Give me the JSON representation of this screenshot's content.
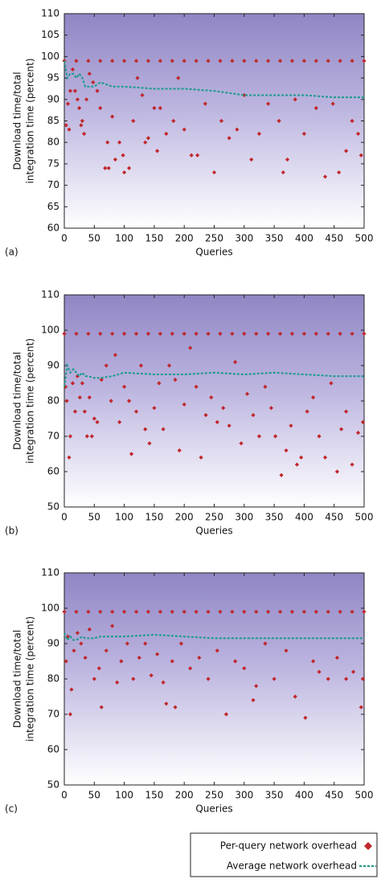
{
  "chart_data": [
    {
      "type": "scatter",
      "panel_label": "(a)",
      "xlabel": "Queries",
      "ylabel": [
        "Download time/total",
        "integration time (percent)"
      ],
      "xlim": [
        0,
        500
      ],
      "xticks": [
        0,
        50,
        100,
        150,
        200,
        250,
        300,
        350,
        400,
        450,
        500
      ],
      "ylim": [
        60,
        110
      ],
      "yticks": [
        60,
        65,
        70,
        75,
        80,
        85,
        90,
        95,
        100,
        105,
        110
      ],
      "series": [
        {
          "mode": "markers",
          "color": "#c0282d",
          "x": [
            0,
            20,
            40,
            60,
            80,
            100,
            120,
            140,
            160,
            180,
            200,
            220,
            240,
            260,
            280,
            300,
            320,
            340,
            360,
            380,
            400,
            420,
            440,
            460,
            480,
            500,
            3,
            6,
            8,
            10,
            14,
            18,
            22,
            25,
            28,
            30,
            33,
            37,
            42,
            48,
            55,
            60,
            68,
            72,
            74,
            80,
            85,
            92,
            98,
            100,
            108,
            115,
            122,
            130,
            135,
            140,
            150,
            155,
            160,
            170,
            182,
            190,
            200,
            212,
            222,
            235,
            250,
            262,
            275,
            288,
            300,
            312,
            325,
            340,
            358,
            365,
            372,
            385,
            400,
            420,
            435,
            448,
            458,
            470,
            480,
            490,
            495
          ],
          "values": [
            99,
            99,
            99,
            99,
            99,
            99,
            99,
            99,
            99,
            99,
            99,
            99,
            99,
            99,
            99,
            99,
            99,
            99,
            99,
            99,
            99,
            99,
            99,
            99,
            99,
            99,
            84,
            89,
            83,
            92,
            97,
            92,
            90,
            88,
            84,
            85,
            82,
            90,
            96,
            94,
            92,
            88,
            74,
            80,
            74,
            86,
            76,
            80,
            77,
            73,
            74,
            85,
            95,
            91,
            80,
            81,
            88,
            78,
            88,
            82,
            85,
            95,
            83,
            77,
            77,
            89,
            73,
            85,
            81,
            83,
            91,
            76,
            82,
            89,
            85,
            73,
            76,
            90,
            82,
            88,
            72,
            89,
            73,
            78,
            85,
            82,
            77
          ]
        },
        {
          "mode": "line",
          "color": "#1a9a8a",
          "x": [
            0,
            5,
            10,
            15,
            20,
            25,
            30,
            35,
            40,
            50,
            60,
            80,
            100,
            150,
            200,
            250,
            300,
            350,
            400,
            450,
            500
          ],
          "values": [
            99,
            95,
            96,
            96,
            95,
            96,
            95,
            93,
            93,
            93,
            94,
            93,
            93,
            92.5,
            92.5,
            92,
            91,
            91,
            91,
            90.5,
            90.5
          ]
        }
      ]
    },
    {
      "type": "scatter",
      "panel_label": "(b)",
      "xlabel": "Queries",
      "ylabel": [
        "Download time/total",
        "integration time (percent)"
      ],
      "xlim": [
        0,
        500
      ],
      "xticks": [
        0,
        50,
        100,
        150,
        200,
        250,
        300,
        350,
        400,
        450,
        500
      ],
      "ylim": [
        50,
        110
      ],
      "yticks": [
        50,
        60,
        70,
        80,
        90,
        100,
        110
      ],
      "series": [
        {
          "mode": "markers",
          "color": "#c0282d",
          "x": [
            0,
            20,
            40,
            60,
            80,
            100,
            120,
            140,
            160,
            180,
            200,
            220,
            240,
            260,
            280,
            300,
            320,
            340,
            360,
            380,
            400,
            420,
            440,
            460,
            480,
            500,
            2,
            4,
            8,
            10,
            14,
            18,
            22,
            26,
            30,
            34,
            38,
            42,
            46,
            50,
            55,
            62,
            70,
            78,
            85,
            92,
            100,
            108,
            112,
            120,
            128,
            135,
            142,
            150,
            158,
            165,
            175,
            185,
            192,
            200,
            210,
            220,
            228,
            236,
            245,
            255,
            265,
            275,
            285,
            295,
            305,
            315,
            325,
            335,
            345,
            352,
            362,
            370,
            378,
            388,
            395,
            405,
            415,
            425,
            435,
            445,
            455,
            462,
            470,
            480,
            490,
            498
          ],
          "values": [
            99,
            99,
            99,
            99,
            99,
            99,
            99,
            99,
            99,
            99,
            99,
            99,
            99,
            99,
            99,
            99,
            99,
            99,
            99,
            99,
            99,
            99,
            99,
            99,
            99,
            99,
            84,
            80,
            64,
            70,
            85,
            77,
            87,
            81,
            85,
            77,
            70,
            81,
            70,
            75,
            74,
            86,
            90,
            80,
            93,
            74,
            84,
            80,
            65,
            77,
            90,
            72,
            68,
            78,
            85,
            72,
            90,
            86,
            66,
            79,
            95,
            84,
            64,
            76,
            81,
            74,
            78,
            73,
            91,
            68,
            82,
            76,
            70,
            84,
            78,
            70,
            59,
            66,
            73,
            62,
            64,
            77,
            81,
            70,
            64,
            85,
            60,
            72,
            77,
            62,
            71,
            74
          ]
        },
        {
          "mode": "line",
          "color": "#1a9a8a",
          "x": [
            0,
            5,
            10,
            15,
            20,
            25,
            30,
            35,
            40,
            50,
            60,
            80,
            100,
            150,
            200,
            250,
            300,
            350,
            400,
            450,
            500
          ],
          "values": [
            84,
            90,
            88,
            89,
            88,
            87,
            88,
            87,
            87,
            86.5,
            86.5,
            87,
            88,
            87.5,
            87.5,
            88,
            87.5,
            88,
            87.5,
            87,
            87
          ]
        }
      ]
    },
    {
      "type": "scatter",
      "panel_label": "(c)",
      "xlabel": "Queries",
      "ylabel": [
        "Download time/total",
        "integration time (percent)"
      ],
      "xlim": [
        0,
        500
      ],
      "xticks": [
        0,
        50,
        100,
        150,
        200,
        250,
        300,
        350,
        400,
        450,
        500
      ],
      "ylim": [
        50,
        110
      ],
      "yticks": [
        50,
        60,
        70,
        80,
        90,
        100,
        110
      ],
      "series": [
        {
          "mode": "markers",
          "color": "#c0282d",
          "x": [
            0,
            20,
            40,
            60,
            80,
            100,
            120,
            140,
            160,
            180,
            200,
            220,
            240,
            260,
            280,
            300,
            320,
            340,
            360,
            380,
            400,
            420,
            440,
            460,
            480,
            500,
            3,
            6,
            10,
            12,
            16,
            22,
            28,
            35,
            42,
            50,
            58,
            62,
            70,
            80,
            88,
            95,
            105,
            115,
            125,
            135,
            145,
            155,
            165,
            170,
            180,
            185,
            195,
            210,
            225,
            240,
            255,
            270,
            285,
            300,
            315,
            320,
            335,
            350,
            370,
            385,
            402,
            415,
            425,
            440,
            455,
            470,
            482,
            495,
            498
          ],
          "values": [
            99,
            99,
            99,
            99,
            99,
            99,
            99,
            99,
            99,
            99,
            99,
            99,
            99,
            99,
            99,
            99,
            99,
            99,
            99,
            99,
            99,
            99,
            99,
            99,
            99,
            99,
            85,
            92,
            70,
            77,
            88,
            93,
            90,
            86,
            94,
            80,
            83,
            72,
            88,
            95,
            79,
            85,
            90,
            80,
            86,
            90,
            81,
            87,
            79,
            73,
            85,
            72,
            90,
            83,
            86,
            80,
            88,
            70,
            85,
            83,
            74,
            78,
            90,
            80,
            88,
            75,
            69,
            85,
            82,
            80,
            86,
            80,
            82,
            72,
            80
          ]
        },
        {
          "mode": "line",
          "color": "#1a9a8a",
          "x": [
            0,
            5,
            10,
            15,
            20,
            25,
            30,
            35,
            40,
            50,
            60,
            80,
            100,
            150,
            200,
            250,
            300,
            350,
            400,
            450,
            500
          ],
          "values": [
            93,
            91,
            92,
            91,
            91,
            91.5,
            92,
            91.5,
            91.5,
            91.5,
            92,
            92,
            92,
            92.5,
            92,
            91.5,
            91.5,
            91.5,
            91.5,
            91.5,
            91.5
          ]
        }
      ]
    }
  ],
  "legend": [
    {
      "label": "Per-query network overhead",
      "marker": "diamond",
      "color": "#c0282d"
    },
    {
      "label": "Average network overhead",
      "marker": "dashed-line",
      "color": "#1a9a8a"
    }
  ]
}
